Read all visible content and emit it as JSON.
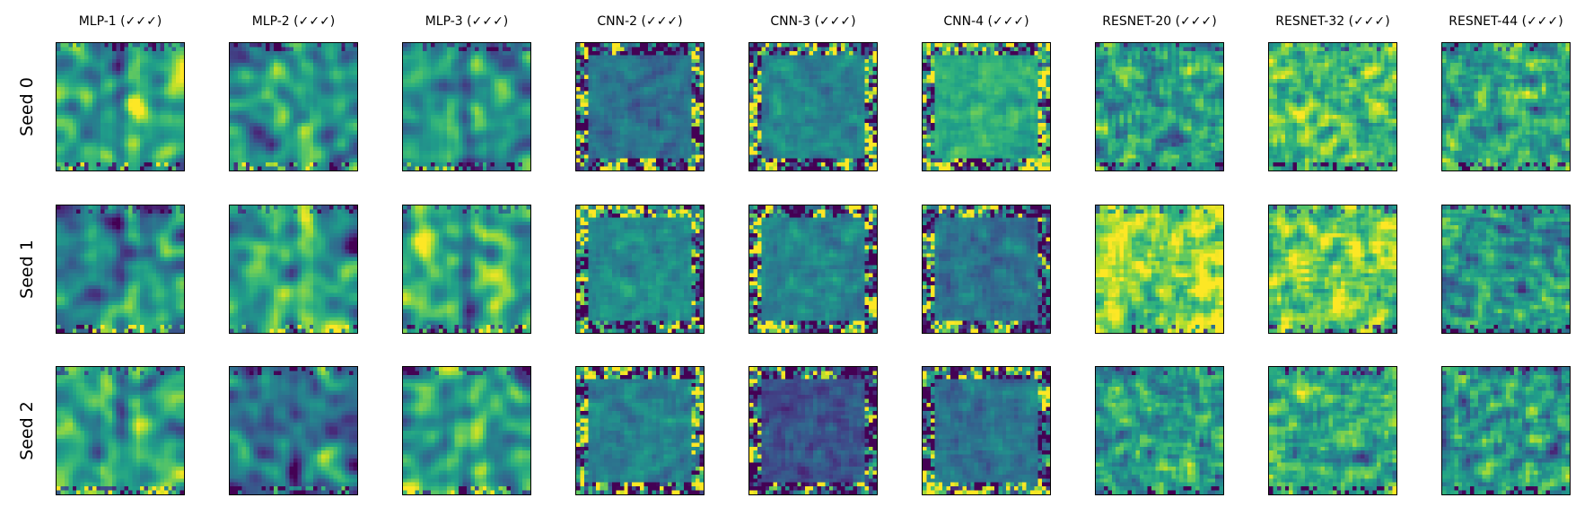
{
  "chart_data": {
    "type": "heatmap",
    "colormap": "viridis",
    "columns": [
      "MLP-1 (✓✓✓)",
      "MLP-2 (✓✓✓)",
      "MLP-3 (✓✓✓)",
      "CNN-2 (✓✓✓)",
      "CNN-3 (✓✓✓)",
      "CNN-4 (✓✓✓)",
      "RESNET-20 (✓✓✓)",
      "RESNET-32 (✓✓✓)",
      "RESNET-44 (✓✓✓)"
    ],
    "rows": [
      "Seed 0",
      "Seed 1",
      "Seed 2"
    ],
    "grid": false,
    "ticks": false
  }
}
